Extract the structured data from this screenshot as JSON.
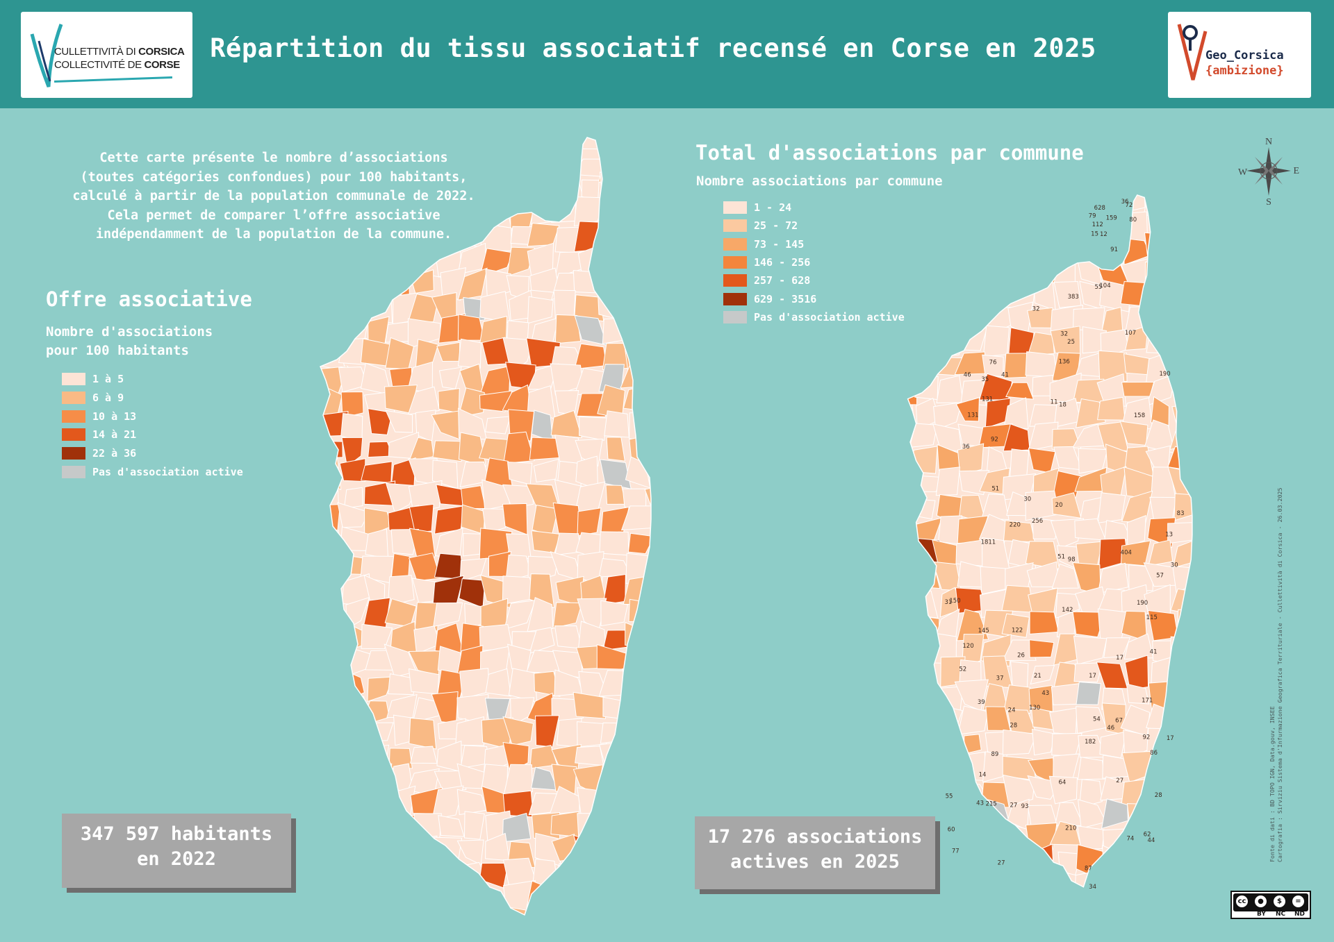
{
  "header": {
    "title": "Répartition du tissu associatif recensé en Corse en 2025",
    "logo_left": {
      "line1_light": "CULLETTIVITÀ DI ",
      "line1_bold": "CORSICA",
      "line2_light": "COLLECTIVITÉ DE ",
      "line2_bold": "CORSE"
    },
    "logo_right": {
      "name": "Geo_Corsica",
      "tagline": "{ambizione}"
    }
  },
  "intro_lines": [
    "Cette carte présente le nombre d’associations",
    "(toutes catégories confondues) pour 100 habitants,",
    "calculé à partir de la population communale de 2022.",
    "Cela permet de comparer l’offre associative",
    "indépendamment de la population de la commune."
  ],
  "left_map": {
    "heading": "Offre associative",
    "legend_title_1": "Nombre d'associations",
    "legend_title_2": "pour 100 habitants",
    "legend": [
      {
        "label": "1 à 5",
        "color": "#fde4d6"
      },
      {
        "label": "6 à 9",
        "color": "#f9ba85"
      },
      {
        "label": "10 à 13",
        "color": "#f68d48"
      },
      {
        "label": "14 à 21",
        "color": "#e3581c"
      },
      {
        "label": "22 à 36",
        "color": "#a0310a"
      },
      {
        "label": "Pas d'association active",
        "color": "#c6c9c9"
      }
    ],
    "stat_line1": "347 597 habitants",
    "stat_line2": "en 2022"
  },
  "right_map": {
    "heading": "Total d'associations par commune",
    "legend_title": "Nombre associations par commune",
    "legend": [
      {
        "label": "1 - 24",
        "color": "#fde4d6"
      },
      {
        "label": "25 - 72",
        "color": "#fbc9a0"
      },
      {
        "label": "73 - 145",
        "color": "#f7a868"
      },
      {
        "label": "146 - 256",
        "color": "#f4853c"
      },
      {
        "label": "257 - 628",
        "color": "#e3581c"
      },
      {
        "label": "629 - 3516",
        "color": "#a0310a"
      },
      {
        "label": "Pas d'association active",
        "color": "#c6c9c9"
      }
    ],
    "stat_line1": "17 276 associations",
    "stat_line2": "actives en 2025",
    "labels": [
      "12",
      "41",
      "21",
      "13",
      "14",
      "83",
      "17",
      "18",
      "43",
      "34",
      "87",
      "131",
      "24",
      "107",
      "159",
      "190",
      "11",
      "51",
      "28",
      "115",
      "86",
      "210",
      "256",
      "404",
      "39",
      "25",
      "215",
      "120",
      "32",
      "136",
      "36",
      "41",
      "60",
      "104",
      "112",
      "46",
      "92",
      "145",
      "150",
      "72",
      "28",
      "76",
      "30",
      "92",
      "57",
      "27",
      "628",
      "64",
      "74",
      "182",
      "220",
      "26",
      "20",
      "54",
      "1811",
      "131",
      "80",
      "46",
      "171",
      "122",
      "89",
      "79",
      "27",
      "77",
      "30",
      "55",
      "98",
      "31",
      "37",
      "55",
      "51",
      "62",
      "158",
      "17",
      "383",
      "32",
      "36",
      "52",
      "27",
      "44",
      "93",
      "142",
      "43",
      "91",
      "17",
      "15",
      "190",
      "130",
      "35",
      "67"
    ],
    "label_color": "#3a2a20"
  },
  "compass": {
    "n": "N",
    "s": "S",
    "e": "E",
    "w": "W"
  },
  "credit": {
    "line1": "Fonte di dati : BD TOPO IGN, Data.gouv, INSEE",
    "line2": "Cartografia : Sirviziu Sistema d'Infurmazione Geografica Territuriale - Cullettività di Corsica - 26.03.2025"
  },
  "license": {
    "labels": [
      "BY",
      "NC",
      "ND"
    ]
  }
}
